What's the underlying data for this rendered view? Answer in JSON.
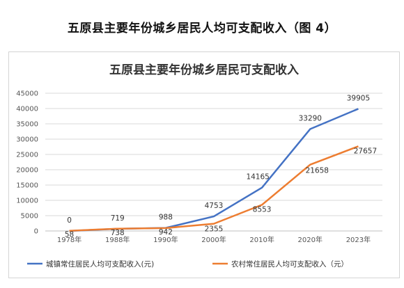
{
  "page_heading": "五原县主要年份城乡居民人均可支配收入（图 4）",
  "colors": {
    "urban": "#4472C4",
    "rural": "#ED7D31",
    "grid": "#d9d9d9"
  },
  "chart_data": {
    "type": "line",
    "title": "五原县主要年份城乡居民可支配收入",
    "categories": [
      "1978年",
      "1988年",
      "1990年",
      "2000年",
      "2010年",
      "2020年",
      "2023年"
    ],
    "ylim": [
      0,
      45000
    ],
    "yticks": [
      0,
      5000,
      10000,
      15000,
      20000,
      25000,
      30000,
      35000,
      40000,
      45000
    ],
    "grid": true,
    "legend_position": "bottom",
    "series": [
      {
        "name": "城镇常住居民人均可支配收入(元)",
        "values": [
          0,
          719,
          988,
          4753,
          14165,
          33290,
          39905
        ],
        "labels": [
          "0",
          "719",
          "988",
          "4753",
          "14165",
          "33290",
          "39905"
        ]
      },
      {
        "name": "农村常住居民人均可支配收入（元）",
        "values": [
          58,
          738,
          942,
          2355,
          8553,
          21658,
          27657
        ],
        "labels": [
          "58",
          "738",
          "942",
          "2355",
          "8553",
          "21658",
          "27657"
        ]
      }
    ]
  }
}
